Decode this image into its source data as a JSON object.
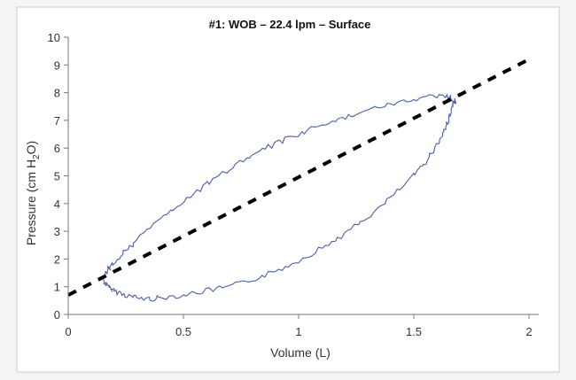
{
  "chart_data": {
    "type": "line",
    "title": "#1: WOB – 22.4 lpm – Surface",
    "xlabel": "Volume (L)",
    "ylabel_main": "Pressure (cm H",
    "ylabel_sub": "2",
    "ylabel_end": "O)",
    "xlim": [
      0,
      2
    ],
    "ylim": [
      0,
      10
    ],
    "x_ticks": [
      0,
      0.5,
      1,
      1.5,
      2
    ],
    "x_tick_labels": [
      "0",
      "0.5",
      "1",
      "1.5",
      "2"
    ],
    "y_ticks": [
      0,
      1,
      2,
      3,
      4,
      5,
      6,
      7,
      8,
      9,
      10
    ],
    "y_tick_labels": [
      "0",
      "1",
      "2",
      "3",
      "4",
      "5",
      "6",
      "7",
      "8",
      "9",
      "10"
    ],
    "grid": false,
    "series": [
      {
        "style": "solid",
        "color": "#4a5fa8",
        "points": [
          [
            0.15,
            1.3
          ],
          [
            0.17,
            1.0
          ],
          [
            0.2,
            0.85
          ],
          [
            0.25,
            0.7
          ],
          [
            0.3,
            0.6
          ],
          [
            0.35,
            0.55
          ],
          [
            0.4,
            0.6
          ],
          [
            0.5,
            0.7
          ],
          [
            0.6,
            0.85
          ],
          [
            0.7,
            1.0
          ],
          [
            0.8,
            1.25
          ],
          [
            0.9,
            1.55
          ],
          [
            1.0,
            1.95
          ],
          [
            1.1,
            2.4
          ],
          [
            1.2,
            2.9
          ],
          [
            1.3,
            3.5
          ],
          [
            1.4,
            4.2
          ],
          [
            1.5,
            5.0
          ],
          [
            1.55,
            5.5
          ],
          [
            1.6,
            6.1
          ],
          [
            1.63,
            6.6
          ],
          [
            1.65,
            7.0
          ],
          [
            1.66,
            7.3
          ],
          [
            1.67,
            7.55
          ],
          [
            1.68,
            7.7
          ],
          [
            1.65,
            7.85
          ],
          [
            1.6,
            7.9
          ],
          [
            1.5,
            7.75
          ],
          [
            1.4,
            7.6
          ],
          [
            1.3,
            7.35
          ],
          [
            1.2,
            7.1
          ],
          [
            1.1,
            6.85
          ],
          [
            1.0,
            6.5
          ],
          [
            0.9,
            6.15
          ],
          [
            0.8,
            5.75
          ],
          [
            0.7,
            5.25
          ],
          [
            0.6,
            4.7
          ],
          [
            0.5,
            4.1
          ],
          [
            0.4,
            3.4
          ],
          [
            0.3,
            2.7
          ],
          [
            0.25,
            2.3
          ],
          [
            0.2,
            1.9
          ],
          [
            0.17,
            1.6
          ],
          [
            0.15,
            1.3
          ]
        ]
      },
      {
        "style": "dashed",
        "color": "#000000",
        "points": [
          [
            0,
            0.7
          ],
          [
            2,
            9.2
          ]
        ]
      }
    ]
  }
}
